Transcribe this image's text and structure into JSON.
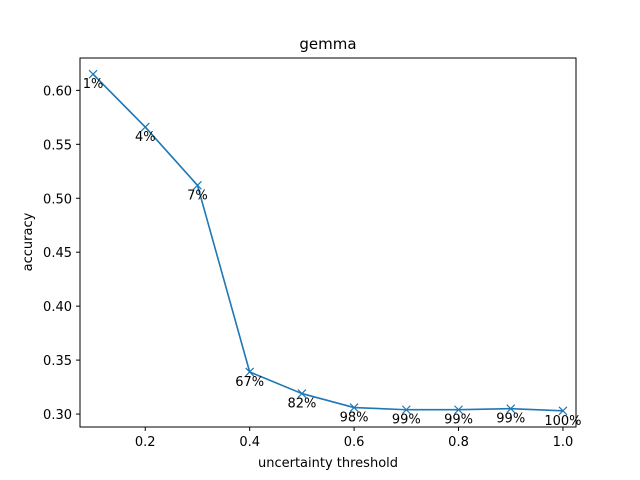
{
  "chart_data": {
    "type": "line",
    "title": "gemma",
    "xlabel": "uncertainty threshold",
    "ylabel": "accuracy",
    "xlim": [
      0.075,
      1.025
    ],
    "ylim": [
      0.288,
      0.63
    ],
    "x_ticks": [
      0.2,
      0.4,
      0.6,
      0.8,
      1.0
    ],
    "x_tick_labels": [
      "0.2",
      "0.4",
      "0.6",
      "0.8",
      "1.0"
    ],
    "y_ticks": [
      0.3,
      0.35,
      0.4,
      0.45,
      0.5,
      0.55,
      0.6
    ],
    "y_tick_labels": [
      "0.30",
      "0.35",
      "0.40",
      "0.45",
      "0.50",
      "0.55",
      "0.60"
    ],
    "grid": false,
    "marker": "x",
    "series": [
      {
        "color": "#1f77b4",
        "x": [
          0.1,
          0.2,
          0.3,
          0.4,
          0.5,
          0.6,
          0.7,
          0.8,
          0.9,
          1.0
        ],
        "y": [
          0.615,
          0.566,
          0.512,
          0.339,
          0.319,
          0.306,
          0.304,
          0.304,
          0.305,
          0.303
        ]
      }
    ],
    "annotations": [
      "1%",
      "4%",
      "7%",
      "67%",
      "82%",
      "98%",
      "99%",
      "99%",
      "99%",
      "100%"
    ]
  }
}
